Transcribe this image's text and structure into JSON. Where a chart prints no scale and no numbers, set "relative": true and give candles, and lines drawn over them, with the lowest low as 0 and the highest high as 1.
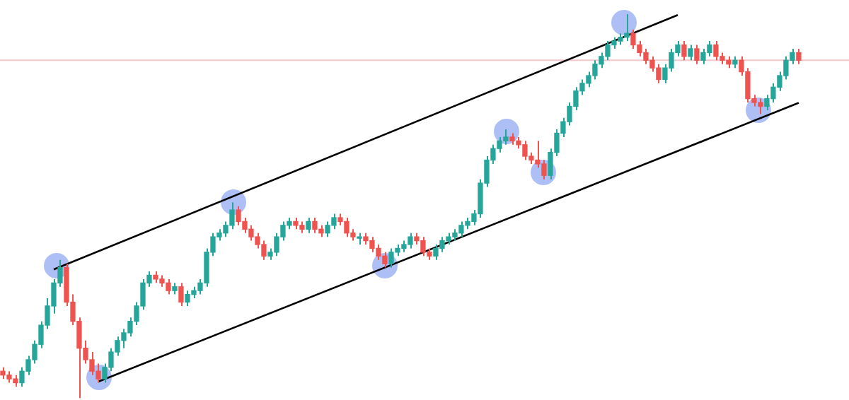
{
  "chart_data": {
    "type": "candlestick",
    "relative": true,
    "categories": [
      null,
      null,
      null,
      null,
      null,
      null,
      null,
      null,
      null,
      null,
      null,
      null,
      null,
      null,
      null,
      null,
      null,
      null,
      null,
      null,
      null,
      null,
      null,
      null,
      null,
      null,
      null,
      null,
      null,
      null,
      null,
      null,
      null,
      null,
      null,
      null,
      null,
      null,
      null,
      null,
      null,
      null,
      null,
      null,
      null,
      null,
      null,
      null,
      null,
      null,
      null,
      null,
      null,
      null,
      null,
      null,
      null,
      null,
      null,
      null,
      null,
      null,
      null,
      null,
      null,
      null,
      null,
      null,
      null,
      null,
      null,
      null,
      null,
      null,
      null,
      null,
      null,
      null,
      null,
      null,
      null,
      null,
      null,
      null,
      null,
      null,
      null,
      null,
      null,
      null,
      null,
      null,
      null,
      null,
      null,
      null,
      null,
      null,
      null,
      null,
      null,
      null,
      null,
      null,
      null,
      null,
      null,
      null,
      null,
      null,
      null,
      null,
      null,
      null,
      null,
      null,
      null,
      null,
      null,
      null,
      null,
      null,
      null,
      null,
      null,
      null
    ],
    "ohlc": [
      [
        0.07,
        0.08,
        0.05,
        0.06
      ],
      [
        0.06,
        0.07,
        0.04,
        0.05
      ],
      [
        0.05,
        0.06,
        0.03,
        0.04
      ],
      [
        0.04,
        0.08,
        0.03,
        0.07
      ],
      [
        0.07,
        0.11,
        0.06,
        0.1
      ],
      [
        0.1,
        0.15,
        0.09,
        0.14
      ],
      [
        0.14,
        0.2,
        0.13,
        0.19
      ],
      [
        0.19,
        0.26,
        0.18,
        0.24
      ],
      [
        0.24,
        0.31,
        0.22,
        0.3
      ],
      [
        0.3,
        0.36,
        0.29,
        0.34
      ],
      [
        0.34,
        0.35,
        0.24,
        0.25
      ],
      [
        0.25,
        0.27,
        0.19,
        0.2
      ],
      [
        0.2,
        0.21,
        0.0,
        0.13
      ],
      [
        0.13,
        0.15,
        0.09,
        0.1
      ],
      [
        0.1,
        0.12,
        0.06,
        0.07
      ],
      [
        0.07,
        0.09,
        0.04,
        0.05
      ],
      [
        0.05,
        0.09,
        0.04,
        0.08
      ],
      [
        0.08,
        0.13,
        0.07,
        0.12
      ],
      [
        0.12,
        0.16,
        0.11,
        0.15
      ],
      [
        0.15,
        0.18,
        0.13,
        0.17
      ],
      [
        0.17,
        0.21,
        0.16,
        0.2
      ],
      [
        0.2,
        0.25,
        0.19,
        0.24
      ],
      [
        0.24,
        0.31,
        0.23,
        0.3
      ],
      [
        0.3,
        0.33,
        0.29,
        0.32
      ],
      [
        0.32,
        0.33,
        0.3,
        0.31
      ],
      [
        0.31,
        0.32,
        0.29,
        0.3
      ],
      [
        0.3,
        0.31,
        0.27,
        0.28
      ],
      [
        0.28,
        0.3,
        0.27,
        0.29
      ],
      [
        0.29,
        0.3,
        0.24,
        0.25
      ],
      [
        0.25,
        0.28,
        0.24,
        0.27
      ],
      [
        0.27,
        0.29,
        0.26,
        0.28
      ],
      [
        0.28,
        0.31,
        0.27,
        0.3
      ],
      [
        0.3,
        0.39,
        0.29,
        0.38
      ],
      [
        0.38,
        0.43,
        0.37,
        0.42
      ],
      [
        0.42,
        0.44,
        0.41,
        0.43
      ],
      [
        0.43,
        0.46,
        0.42,
        0.45
      ],
      [
        0.45,
        0.51,
        0.44,
        0.49
      ],
      [
        0.49,
        0.5,
        0.45,
        0.46
      ],
      [
        0.46,
        0.47,
        0.43,
        0.44
      ],
      [
        0.44,
        0.45,
        0.41,
        0.42
      ],
      [
        0.42,
        0.43,
        0.39,
        0.4
      ],
      [
        0.4,
        0.41,
        0.36,
        0.37
      ],
      [
        0.37,
        0.39,
        0.36,
        0.38
      ],
      [
        0.38,
        0.43,
        0.37,
        0.42
      ],
      [
        0.42,
        0.46,
        0.41,
        0.45
      ],
      [
        0.45,
        0.47,
        0.44,
        0.46
      ],
      [
        0.46,
        0.47,
        0.44,
        0.45
      ],
      [
        0.45,
        0.46,
        0.43,
        0.44
      ],
      [
        0.44,
        0.47,
        0.43,
        0.46
      ],
      [
        0.46,
        0.47,
        0.43,
        0.44
      ],
      [
        0.44,
        0.45,
        0.42,
        0.43
      ],
      [
        0.43,
        0.46,
        0.42,
        0.45
      ],
      [
        0.45,
        0.48,
        0.44,
        0.47
      ],
      [
        0.47,
        0.48,
        0.45,
        0.46
      ],
      [
        0.46,
        0.47,
        0.42,
        0.43
      ],
      [
        0.43,
        0.44,
        0.41,
        0.42
      ],
      [
        0.42,
        0.43,
        0.4,
        0.42
      ],
      [
        0.42,
        0.43,
        0.4,
        0.41
      ],
      [
        0.41,
        0.42,
        0.38,
        0.39
      ],
      [
        0.39,
        0.4,
        0.36,
        0.37
      ],
      [
        0.37,
        0.38,
        0.34,
        0.35
      ],
      [
        0.35,
        0.39,
        0.34,
        0.38
      ],
      [
        0.38,
        0.4,
        0.37,
        0.39
      ],
      [
        0.39,
        0.41,
        0.38,
        0.4
      ],
      [
        0.4,
        0.43,
        0.39,
        0.42
      ],
      [
        0.42,
        0.43,
        0.4,
        0.41
      ],
      [
        0.41,
        0.42,
        0.37,
        0.38
      ],
      [
        0.38,
        0.39,
        0.36,
        0.37
      ],
      [
        0.37,
        0.4,
        0.36,
        0.39
      ],
      [
        0.39,
        0.42,
        0.38,
        0.41
      ],
      [
        0.41,
        0.43,
        0.4,
        0.42
      ],
      [
        0.42,
        0.44,
        0.41,
        0.43
      ],
      [
        0.43,
        0.46,
        0.42,
        0.45
      ],
      [
        0.45,
        0.47,
        0.44,
        0.46
      ],
      [
        0.46,
        0.49,
        0.45,
        0.48
      ],
      [
        0.48,
        0.57,
        0.47,
        0.56
      ],
      [
        0.56,
        0.63,
        0.55,
        0.62
      ],
      [
        0.62,
        0.66,
        0.61,
        0.65
      ],
      [
        0.65,
        0.68,
        0.64,
        0.67
      ],
      [
        0.67,
        0.7,
        0.66,
        0.68
      ],
      [
        0.68,
        0.69,
        0.66,
        0.67
      ],
      [
        0.67,
        0.68,
        0.65,
        0.66
      ],
      [
        0.66,
        0.67,
        0.62,
        0.63
      ],
      [
        0.63,
        0.64,
        0.61,
        0.62
      ],
      [
        0.62,
        0.67,
        0.6,
        0.61
      ],
      [
        0.61,
        0.62,
        0.57,
        0.58
      ],
      [
        0.58,
        0.65,
        0.57,
        0.64
      ],
      [
        0.64,
        0.7,
        0.63,
        0.69
      ],
      [
        0.69,
        0.73,
        0.68,
        0.72
      ],
      [
        0.72,
        0.77,
        0.71,
        0.76
      ],
      [
        0.76,
        0.81,
        0.75,
        0.8
      ],
      [
        0.8,
        0.83,
        0.79,
        0.82
      ],
      [
        0.82,
        0.85,
        0.81,
        0.84
      ],
      [
        0.84,
        0.88,
        0.83,
        0.87
      ],
      [
        0.87,
        0.9,
        0.86,
        0.89
      ],
      [
        0.89,
        0.93,
        0.88,
        0.92
      ],
      [
        0.92,
        0.94,
        0.91,
        0.93
      ],
      [
        0.93,
        0.95,
        0.92,
        0.94
      ],
      [
        0.94,
        1.0,
        0.93,
        0.95
      ],
      [
        0.95,
        0.96,
        0.91,
        0.92
      ],
      [
        0.92,
        0.93,
        0.89,
        0.9
      ],
      [
        0.9,
        0.91,
        0.87,
        0.88
      ],
      [
        0.88,
        0.89,
        0.85,
        0.86
      ],
      [
        0.86,
        0.87,
        0.82,
        0.83
      ],
      [
        0.83,
        0.87,
        0.82,
        0.86
      ],
      [
        0.86,
        0.91,
        0.85,
        0.9
      ],
      [
        0.9,
        0.93,
        0.89,
        0.92
      ],
      [
        0.92,
        0.93,
        0.88,
        0.89
      ],
      [
        0.89,
        0.92,
        0.88,
        0.91
      ],
      [
        0.91,
        0.92,
        0.87,
        0.88
      ],
      [
        0.88,
        0.91,
        0.87,
        0.9
      ],
      [
        0.9,
        0.93,
        0.89,
        0.92
      ],
      [
        0.92,
        0.93,
        0.88,
        0.89
      ],
      [
        0.89,
        0.9,
        0.87,
        0.88
      ],
      [
        0.88,
        0.89,
        0.86,
        0.87
      ],
      [
        0.87,
        0.89,
        0.86,
        0.88
      ],
      [
        0.88,
        0.89,
        0.84,
        0.85
      ],
      [
        0.85,
        0.86,
        0.77,
        0.78
      ],
      [
        0.78,
        0.79,
        0.76,
        0.77
      ],
      [
        0.77,
        0.78,
        0.74,
        0.76
      ],
      [
        0.76,
        0.79,
        0.75,
        0.78
      ],
      [
        0.78,
        0.82,
        0.77,
        0.81
      ],
      [
        0.81,
        0.85,
        0.8,
        0.84
      ],
      [
        0.84,
        0.89,
        0.83,
        0.88
      ],
      [
        0.88,
        0.91,
        0.87,
        0.9
      ],
      [
        0.9,
        0.91,
        0.87,
        0.88
      ]
    ],
    "series": [
      {
        "type": "line",
        "color": "#000000",
        "values": [
          null,
          null,
          null,
          null,
          null,
          null,
          null,
          null,
          0.335,
          null,
          null,
          null,
          null,
          null,
          null,
          null,
          null,
          null,
          null,
          null,
          null,
          null,
          null,
          null,
          null,
          null,
          null,
          null,
          null,
          null,
          null,
          null,
          null,
          null,
          null,
          null,
          null,
          null,
          null,
          null,
          null,
          null,
          null,
          null,
          null,
          null,
          null,
          null,
          null,
          null,
          null,
          null,
          null,
          null,
          null,
          null,
          null,
          null,
          null,
          null,
          null,
          null,
          null,
          null,
          null,
          null,
          null,
          null,
          null,
          null,
          null,
          null,
          null,
          null,
          null,
          null,
          null,
          null,
          null,
          null,
          null,
          null,
          null,
          null,
          null,
          null,
          null,
          null,
          null,
          null,
          null,
          null,
          null,
          null,
          null,
          null,
          null,
          null,
          null,
          null,
          null,
          null,
          null,
          null,
          null,
          null,
          0.998,
          null,
          null,
          null,
          null,
          null,
          null,
          null,
          null,
          null,
          null,
          null,
          null,
          null,
          null,
          null,
          null,
          null,
          null,
          null
        ]
      },
      {
        "type": "line",
        "color": "#000000",
        "values": [
          null,
          null,
          null,
          null,
          null,
          null,
          null,
          null,
          null,
          null,
          null,
          null,
          null,
          null,
          null,
          0.043,
          null,
          null,
          null,
          null,
          null,
          null,
          null,
          null,
          null,
          null,
          null,
          null,
          null,
          null,
          null,
          null,
          null,
          null,
          null,
          null,
          null,
          null,
          null,
          null,
          null,
          null,
          null,
          null,
          null,
          null,
          null,
          null,
          null,
          null,
          null,
          null,
          null,
          null,
          null,
          null,
          null,
          null,
          null,
          null,
          null,
          null,
          null,
          null,
          null,
          null,
          null,
          null,
          null,
          null,
          null,
          null,
          null,
          null,
          null,
          null,
          null,
          null,
          null,
          null,
          null,
          null,
          null,
          null,
          null,
          null,
          null,
          null,
          null,
          null,
          null,
          null,
          null,
          null,
          null,
          null,
          null,
          null,
          null,
          null,
          null,
          null,
          null,
          null,
          null,
          null,
          null,
          null,
          null,
          null,
          null,
          null,
          null,
          null,
          null,
          null,
          null,
          null,
          null,
          null,
          null,
          null,
          null,
          null,
          null,
          0.769
        ]
      }
    ],
    "ref_lines": [
      {
        "axis": "y",
        "value": 0.88,
        "color": "#f5c6cb"
      }
    ],
    "legend": false
  }
}
